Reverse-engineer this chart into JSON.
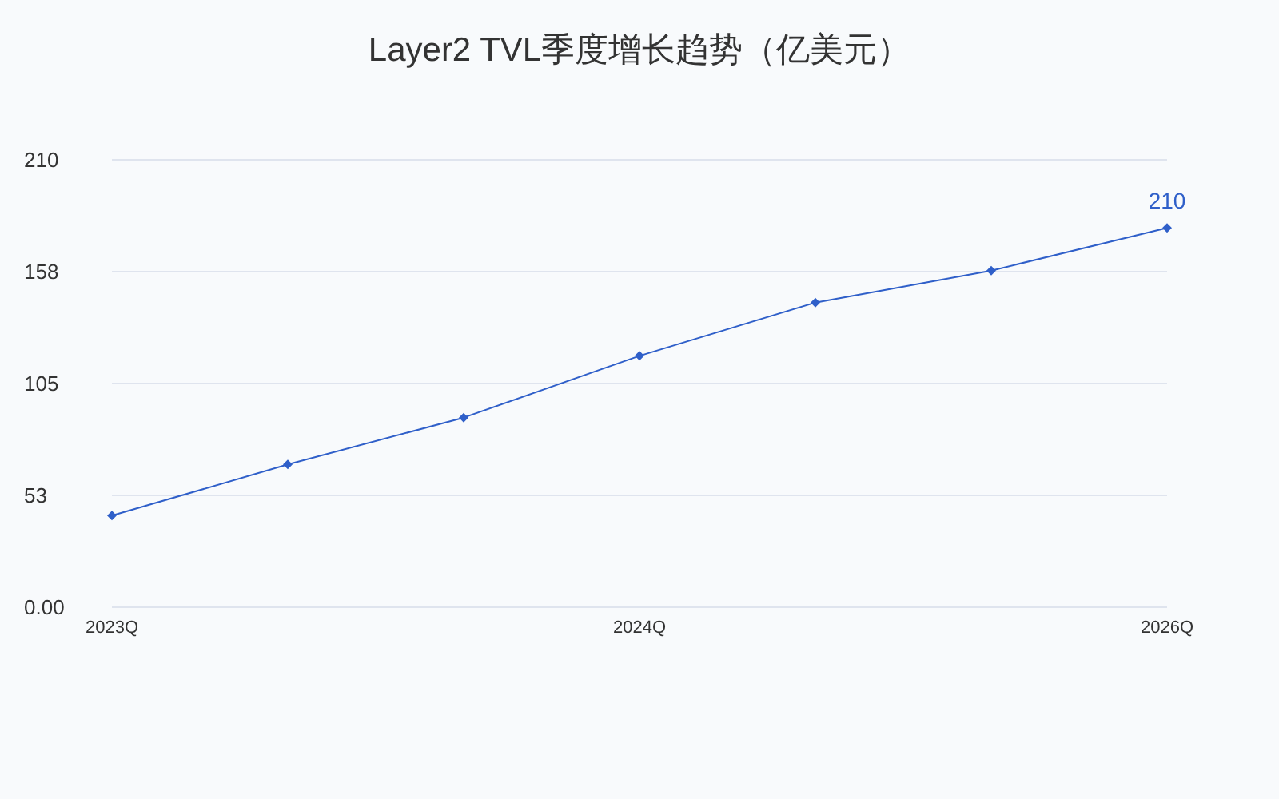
{
  "chart_data": {
    "type": "line",
    "title": "Layer2 TVL季度增长趋势（亿美元）",
    "categories": [
      "2023Q",
      null,
      null,
      "2024Q",
      null,
      null,
      "2026Q"
    ],
    "values": [
      43,
      67,
      89,
      118,
      143,
      158,
      178
    ],
    "color": "#2f5fc9",
    "ylim": [
      0,
      210
    ],
    "yticks": [
      {
        "value": 0,
        "label": "0.00"
      },
      {
        "value": 52.5,
        "label": "53"
      },
      105,
      {
        "value": 157.5,
        "label": "158"
      },
      210
    ],
    "grid": "y",
    "marker": "diamond",
    "line_style": "solid",
    "annotations": [
      {
        "text": "210",
        "x": "2026Q",
        "y": 178
      }
    ]
  }
}
